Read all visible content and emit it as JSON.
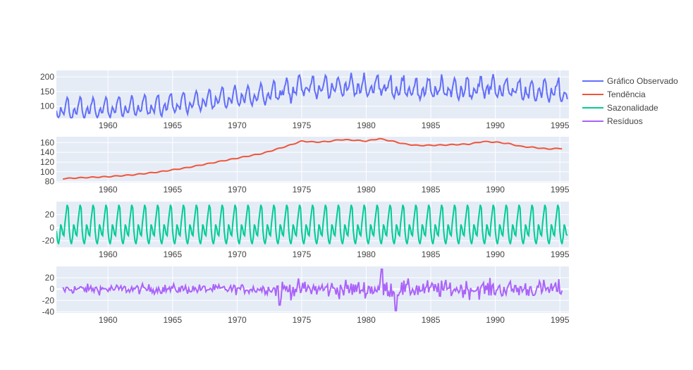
{
  "chart_data": {
    "type": "line",
    "layout": "4 stacked subplots sharing x axis",
    "x_range": [
      1956,
      1995.7
    ],
    "x_ticks": [
      1960,
      1965,
      1970,
      1975,
      1980,
      1985,
      1990,
      1995
    ],
    "legend_position": "top-right",
    "grid": true,
    "background": "#e5ecf6",
    "panels": [
      {
        "series_name": "Gráfico Observado",
        "color": "#636efa",
        "y_range": [
          58,
          222
        ],
        "y_ticks": [
          100,
          150,
          200
        ],
        "model": {
          "kind": "observed",
          "noise": 10,
          "seasonal_amp": 1.2
        }
      },
      {
        "series_name": "Tendência",
        "color": "#EF553B",
        "y_range": [
          78,
          172
        ],
        "y_ticks": [
          80,
          100,
          120,
          140,
          160
        ],
        "trend_points": [
          [
            1956.5,
            86
          ],
          [
            1958,
            88
          ],
          [
            1960,
            90
          ],
          [
            1962,
            94
          ],
          [
            1964,
            100
          ],
          [
            1966,
            108
          ],
          [
            1968,
            118
          ],
          [
            1970,
            128
          ],
          [
            1972,
            138
          ],
          [
            1974,
            154
          ],
          [
            1975,
            163
          ],
          [
            1976,
            161
          ],
          [
            1977,
            162
          ],
          [
            1978,
            166
          ],
          [
            1979,
            165
          ],
          [
            1980,
            163
          ],
          [
            1981,
            168
          ],
          [
            1982,
            163
          ],
          [
            1983,
            157
          ],
          [
            1984,
            154
          ],
          [
            1986,
            155
          ],
          [
            1988,
            157
          ],
          [
            1989,
            162
          ],
          [
            1990,
            161
          ],
          [
            1991,
            158
          ],
          [
            1992,
            152
          ],
          [
            1993,
            150
          ],
          [
            1994,
            147
          ],
          [
            1995.2,
            148
          ]
        ]
      },
      {
        "series_name": "Sazonalidade",
        "color": "#00cc96",
        "y_range": [
          -30,
          40
        ],
        "y_ticks": [
          -20,
          0,
          20
        ],
        "seasonal_monthly": [
          -5,
          -20,
          -25,
          -15,
          5,
          0,
          -10,
          -12,
          8,
          22,
          35,
          30
        ]
      },
      {
        "series_name": "Resíduos",
        "color": "#ab63fa",
        "y_range": [
          -42,
          40
        ],
        "y_ticks": [
          -40,
          -20,
          0,
          20
        ],
        "model": {
          "kind": "residual",
          "noise_early": 6,
          "noise_late": 12
        }
      }
    ]
  },
  "legend": {
    "items": [
      "Gráfico Observado",
      "Tendência",
      "Sazonalidade",
      "Resíduos"
    ]
  }
}
